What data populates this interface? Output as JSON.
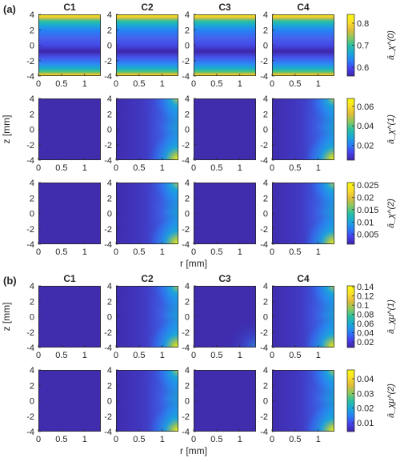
{
  "panel_labels": [
    "(a)",
    "(b)"
  ],
  "column_titles": [
    "C1",
    "C2",
    "C3",
    "C4"
  ],
  "axis_labels": {
    "x": "r [mm]",
    "y": "z [mm]"
  },
  "colormap": [
    "#3e26a8",
    "#4640ec",
    "#277ff6",
    "#1aa8d8",
    "#2ac0a0",
    "#8ac95e",
    "#e0bb38",
    "#fbe02a",
    "#f9fb0e"
  ],
  "chart_data": {
    "type": "heatmap",
    "x_range": [
      0,
      1.35
    ],
    "y_range": [
      -4,
      4
    ],
    "x_ticks": [
      0,
      0.5,
      1
    ],
    "x_tick_labels": [
      "0",
      "0.5",
      "1"
    ],
    "y_ticks": [
      4,
      2,
      0,
      -2,
      -4
    ],
    "y_tick_labels": [
      "4",
      "2",
      "0",
      "-2",
      "-4"
    ],
    "rows": [
      {
        "panel": "(a)",
        "colorbar_label": "ā_χ^(0)",
        "colorbar_range": [
          0.56,
          0.84
        ],
        "colorbar_ticks": [
          0.8,
          0.7,
          0.6
        ],
        "colorbar_tick_labels": [
          "0.8",
          "0.7",
          "0.6"
        ],
        "cases": [
          "axial",
          "axial",
          "axial",
          "axial"
        ],
        "show_column_titles": true,
        "show_xlabel": false,
        "show_ylabel": false
      },
      {
        "panel": "(a)",
        "colorbar_label": "ā_χ^(1)",
        "colorbar_range": [
          0.005,
          0.068
        ],
        "colorbar_ticks": [
          0.06,
          0.04,
          0.02
        ],
        "colorbar_tick_labels": [
          "0.06",
          "0.04",
          "0.02"
        ],
        "cases": [
          "flat",
          "edge",
          "flat",
          "edge"
        ],
        "show_column_titles": false,
        "show_xlabel": false,
        "show_ylabel": true
      },
      {
        "panel": "(a)",
        "colorbar_label": "ā_χ^(2)",
        "colorbar_range": [
          0.001,
          0.026
        ],
        "colorbar_ticks": [
          0.025,
          0.02,
          0.015,
          0.01,
          0.005
        ],
        "colorbar_tick_labels": [
          "0.025",
          "0.02",
          "0.015",
          "0.01",
          "0.005"
        ],
        "cases": [
          "flat",
          "edge",
          "flat",
          "edge"
        ],
        "show_column_titles": false,
        "show_xlabel": true,
        "show_ylabel": false
      },
      {
        "panel": "(b)",
        "colorbar_label": "ā_χμ^(1)",
        "colorbar_range": [
          0.008,
          0.142
        ],
        "colorbar_ticks": [
          0.14,
          0.12,
          0.1,
          0.08,
          0.06,
          0.04,
          0.02
        ],
        "colorbar_tick_labels": [
          "0.14",
          "0.12",
          "0.1",
          "0.08",
          "0.06",
          "0.04",
          "0.02"
        ],
        "cases": [
          "flat",
          "edge",
          "edge-weak",
          "edge"
        ],
        "show_column_titles": true,
        "show_xlabel": false,
        "show_ylabel": true
      },
      {
        "panel": "(b)",
        "colorbar_label": "ā_χμ^(2)",
        "colorbar_range": [
          0.004,
          0.046
        ],
        "colorbar_ticks": [
          0.04,
          0.03,
          0.02,
          0.01
        ],
        "colorbar_tick_labels": [
          "0.04",
          "0.03",
          "0.02",
          "0.01"
        ],
        "cases": [
          "flat",
          "edge",
          "flat",
          "edge"
        ],
        "show_column_titles": false,
        "show_xlabel": true,
        "show_ylabel": false
      }
    ]
  }
}
